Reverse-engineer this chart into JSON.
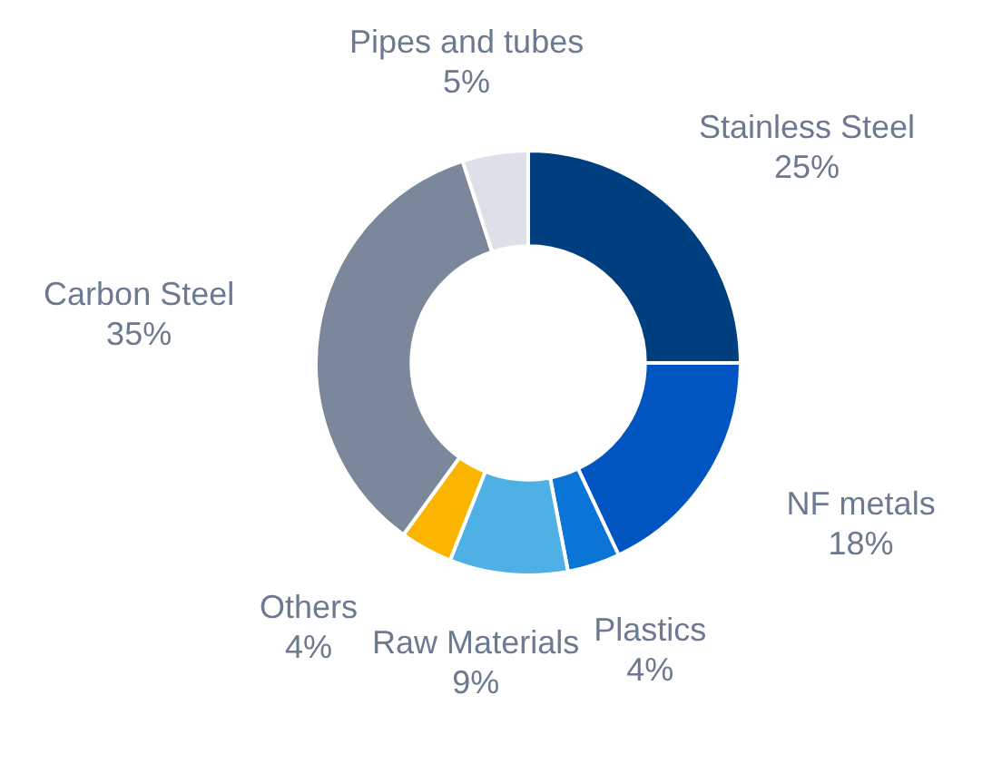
{
  "chart_data": {
    "type": "donut",
    "categories": [
      "Stainless Steel",
      "NF metals",
      "Plastics",
      "Raw Materials",
      "Others",
      "Carbon Steel",
      "Pipes and tubes"
    ],
    "values": [
      25,
      18,
      4,
      9,
      4,
      35,
      5
    ],
    "value_labels": [
      "25%",
      "18%",
      "4%",
      "9%",
      "4%",
      "35%",
      "5%"
    ],
    "colors": [
      "#003f7f",
      "#0055c0",
      "#0a75d6",
      "#4fb0e6",
      "#fbb400",
      "#7b889c",
      "#dde0e8"
    ],
    "legend": false
  }
}
